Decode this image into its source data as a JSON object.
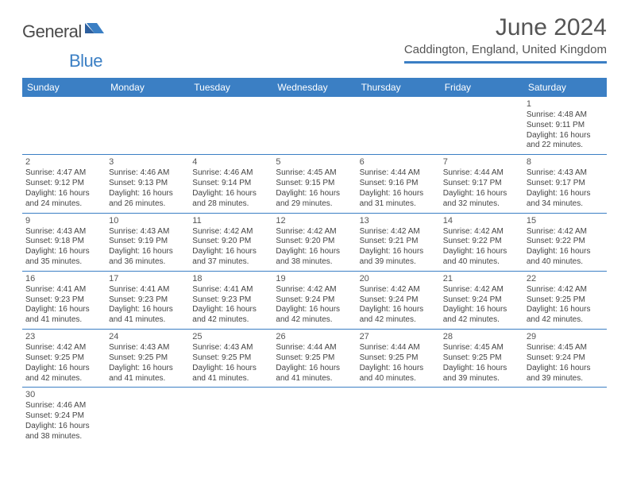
{
  "logo": {
    "part1": "General",
    "part2": "Blue"
  },
  "title": "June 2024",
  "location": "Caddington, England, United Kingdom",
  "colors": {
    "brand_blue": "#3b7fc4",
    "text_gray": "#555555",
    "cell_text": "#444444",
    "background": "#ffffff"
  },
  "days_of_week": [
    "Sunday",
    "Monday",
    "Tuesday",
    "Wednesday",
    "Thursday",
    "Friday",
    "Saturday"
  ],
  "weeks": [
    [
      null,
      null,
      null,
      null,
      null,
      null,
      {
        "d": "1",
        "sr": "4:48 AM",
        "ss": "9:11 PM",
        "dl": "16 hours and 22 minutes."
      }
    ],
    [
      {
        "d": "2",
        "sr": "4:47 AM",
        "ss": "9:12 PM",
        "dl": "16 hours and 24 minutes."
      },
      {
        "d": "3",
        "sr": "4:46 AM",
        "ss": "9:13 PM",
        "dl": "16 hours and 26 minutes."
      },
      {
        "d": "4",
        "sr": "4:46 AM",
        "ss": "9:14 PM",
        "dl": "16 hours and 28 minutes."
      },
      {
        "d": "5",
        "sr": "4:45 AM",
        "ss": "9:15 PM",
        "dl": "16 hours and 29 minutes."
      },
      {
        "d": "6",
        "sr": "4:44 AM",
        "ss": "9:16 PM",
        "dl": "16 hours and 31 minutes."
      },
      {
        "d": "7",
        "sr": "4:44 AM",
        "ss": "9:17 PM",
        "dl": "16 hours and 32 minutes."
      },
      {
        "d": "8",
        "sr": "4:43 AM",
        "ss": "9:17 PM",
        "dl": "16 hours and 34 minutes."
      }
    ],
    [
      {
        "d": "9",
        "sr": "4:43 AM",
        "ss": "9:18 PM",
        "dl": "16 hours and 35 minutes."
      },
      {
        "d": "10",
        "sr": "4:43 AM",
        "ss": "9:19 PM",
        "dl": "16 hours and 36 minutes."
      },
      {
        "d": "11",
        "sr": "4:42 AM",
        "ss": "9:20 PM",
        "dl": "16 hours and 37 minutes."
      },
      {
        "d": "12",
        "sr": "4:42 AM",
        "ss": "9:20 PM",
        "dl": "16 hours and 38 minutes."
      },
      {
        "d": "13",
        "sr": "4:42 AM",
        "ss": "9:21 PM",
        "dl": "16 hours and 39 minutes."
      },
      {
        "d": "14",
        "sr": "4:42 AM",
        "ss": "9:22 PM",
        "dl": "16 hours and 40 minutes."
      },
      {
        "d": "15",
        "sr": "4:42 AM",
        "ss": "9:22 PM",
        "dl": "16 hours and 40 minutes."
      }
    ],
    [
      {
        "d": "16",
        "sr": "4:41 AM",
        "ss": "9:23 PM",
        "dl": "16 hours and 41 minutes."
      },
      {
        "d": "17",
        "sr": "4:41 AM",
        "ss": "9:23 PM",
        "dl": "16 hours and 41 minutes."
      },
      {
        "d": "18",
        "sr": "4:41 AM",
        "ss": "9:23 PM",
        "dl": "16 hours and 42 minutes."
      },
      {
        "d": "19",
        "sr": "4:42 AM",
        "ss": "9:24 PM",
        "dl": "16 hours and 42 minutes."
      },
      {
        "d": "20",
        "sr": "4:42 AM",
        "ss": "9:24 PM",
        "dl": "16 hours and 42 minutes."
      },
      {
        "d": "21",
        "sr": "4:42 AM",
        "ss": "9:24 PM",
        "dl": "16 hours and 42 minutes."
      },
      {
        "d": "22",
        "sr": "4:42 AM",
        "ss": "9:25 PM",
        "dl": "16 hours and 42 minutes."
      }
    ],
    [
      {
        "d": "23",
        "sr": "4:42 AM",
        "ss": "9:25 PM",
        "dl": "16 hours and 42 minutes."
      },
      {
        "d": "24",
        "sr": "4:43 AM",
        "ss": "9:25 PM",
        "dl": "16 hours and 41 minutes."
      },
      {
        "d": "25",
        "sr": "4:43 AM",
        "ss": "9:25 PM",
        "dl": "16 hours and 41 minutes."
      },
      {
        "d": "26",
        "sr": "4:44 AM",
        "ss": "9:25 PM",
        "dl": "16 hours and 41 minutes."
      },
      {
        "d": "27",
        "sr": "4:44 AM",
        "ss": "9:25 PM",
        "dl": "16 hours and 40 minutes."
      },
      {
        "d": "28",
        "sr": "4:45 AM",
        "ss": "9:25 PM",
        "dl": "16 hours and 39 minutes."
      },
      {
        "d": "29",
        "sr": "4:45 AM",
        "ss": "9:24 PM",
        "dl": "16 hours and 39 minutes."
      }
    ],
    [
      {
        "d": "30",
        "sr": "4:46 AM",
        "ss": "9:24 PM",
        "dl": "16 hours and 38 minutes."
      },
      null,
      null,
      null,
      null,
      null,
      null
    ]
  ],
  "labels": {
    "sunrise": "Sunrise:",
    "sunset": "Sunset:",
    "daylight": "Daylight:"
  }
}
